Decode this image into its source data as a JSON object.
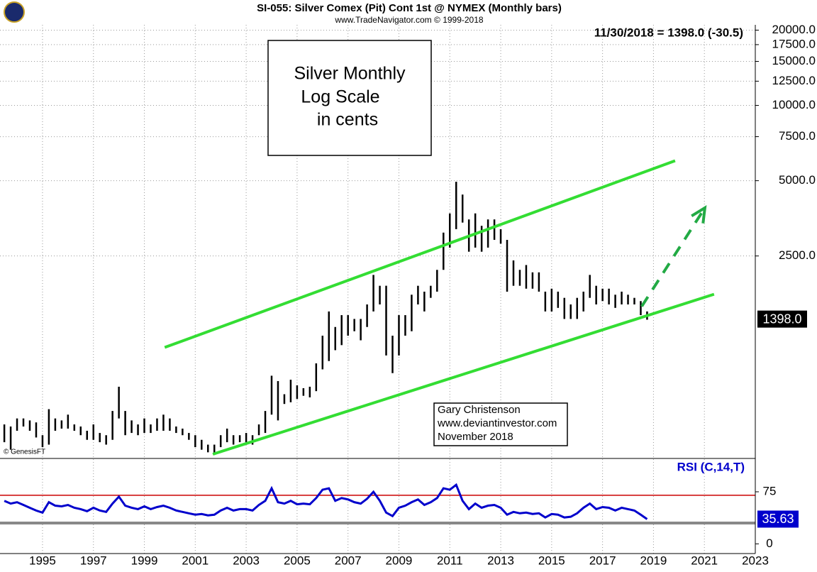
{
  "chart_data": {
    "type": "ohlc",
    "title": "SI-055:  Silver Comex (Pit) Cont 1st @ NYMEX  (Monthly bars)",
    "subtitle": "www.TradeNavigator.com © 1999-2018",
    "last_quote": "11/30/2018 = 1398.0 (-30.5)",
    "copyright": "© GenesisFT",
    "annotations": [
      "Silver Monthly",
      "Log Scale",
      "in cents"
    ],
    "credit": [
      "Gary Christenson",
      "www.deviantinvestor.com",
      "November 2018"
    ],
    "log_scale": true,
    "grid": true,
    "color": "#000000",
    "x": [
      1993.5,
      1993.75,
      1994,
      1994.25,
      1994.5,
      1994.75,
      1995,
      1995.25,
      1995.5,
      1995.75,
      1996,
      1996.25,
      1996.5,
      1996.75,
      1997,
      1997.25,
      1997.5,
      1997.75,
      1998,
      1998.25,
      1998.5,
      1998.75,
      1999,
      1999.25,
      1999.5,
      1999.75,
      2000,
      2000.25,
      2000.5,
      2000.75,
      2001,
      2001.25,
      2001.5,
      2001.75,
      2002,
      2002.25,
      2002.5,
      2002.75,
      2003,
      2003.25,
      2003.5,
      2003.75,
      2004,
      2004.25,
      2004.5,
      2004.75,
      2005,
      2005.25,
      2005.5,
      2005.75,
      2006,
      2006.25,
      2006.5,
      2006.75,
      2007,
      2007.25,
      2007.5,
      2007.75,
      2008,
      2008.25,
      2008.5,
      2008.75,
      2009,
      2009.25,
      2009.5,
      2009.75,
      2010,
      2010.25,
      2010.5,
      2010.75,
      2011,
      2011.25,
      2011.5,
      2011.75,
      2012,
      2012.25,
      2012.5,
      2012.75,
      2013,
      2013.25,
      2013.5,
      2013.75,
      2014,
      2014.25,
      2014.5,
      2014.75,
      2015,
      2015.25,
      2015.5,
      2015.75,
      2016,
      2016.25,
      2016.5,
      2016.75,
      2017,
      2017.25,
      2017.5,
      2017.75,
      2018,
      2018.25,
      2018.5,
      2018.75
    ],
    "high": [
      530,
      520,
      560,
      560,
      550,
      540,
      480,
      610,
      560,
      550,
      580,
      530,
      520,
      500,
      530,
      490,
      480,
      600,
      750,
      600,
      550,
      530,
      560,
      530,
      560,
      580,
      560,
      520,
      510,
      490,
      480,
      460,
      440,
      440,
      480,
      510,
      480,
      480,
      490,
      480,
      530,
      600,
      830,
      790,
      700,
      800,
      760,
      740,
      750,
      930,
      1200,
      1500,
      1300,
      1450,
      1450,
      1400,
      1400,
      1600,
      2100,
      1900,
      1900,
      1200,
      1450,
      1450,
      1750,
      1900,
      1800,
      1900,
      2200,
      3100,
      3700,
      4950,
      4400,
      3500,
      3700,
      3300,
      3500,
      3500,
      3200,
      2900,
      2400,
      2200,
      2300,
      2150,
      2150,
      1800,
      1850,
      1800,
      1700,
      1600,
      1700,
      1800,
      2100,
      1900,
      1850,
      1850,
      1750,
      1800,
      1750,
      1700,
      1650,
      1500
    ],
    "low": [
      450,
      420,
      500,
      520,
      500,
      470,
      430,
      440,
      500,
      510,
      510,
      500,
      480,
      460,
      460,
      450,
      440,
      460,
      560,
      480,
      490,
      480,
      490,
      490,
      500,
      500,
      500,
      490,
      480,
      460,
      430,
      420,
      410,
      400,
      430,
      450,
      440,
      450,
      450,
      440,
      480,
      490,
      580,
      550,
      640,
      650,
      670,
      690,
      680,
      720,
      880,
      950,
      1050,
      1100,
      1200,
      1250,
      1150,
      1300,
      1500,
      1600,
      1000,
      850,
      1000,
      1200,
      1250,
      1600,
      1500,
      1700,
      1800,
      2200,
      2700,
      3200,
      3400,
      2600,
      2700,
      2600,
      2700,
      2900,
      2800,
      1800,
      1900,
      1900,
      1850,
      1850,
      1800,
      1500,
      1500,
      1550,
      1400,
      1400,
      1400,
      1500,
      1700,
      1600,
      1650,
      1600,
      1550,
      1600,
      1600,
      1600,
      1450,
      1390
    ],
    "last_price": {
      "value": 1398,
      "label": "1398.0"
    },
    "xlim": [
      1993.33,
      2023.0
    ],
    "xticks": [
      1995,
      1997,
      1999,
      2001,
      2003,
      2005,
      2007,
      2009,
      2011,
      2013,
      2015,
      2017,
      2019,
      2021,
      2023
    ],
    "ylim": [
      390,
      21000
    ],
    "yticks": [
      {
        "value": 20000,
        "label": "20000.0"
      },
      {
        "value": 17500,
        "label": "17500.0"
      },
      {
        "value": 15000,
        "label": "15000.0"
      },
      {
        "value": 12500,
        "label": "12500.0"
      },
      {
        "value": 10000,
        "label": "10000.0"
      },
      {
        "value": 7500,
        "label": "7500.0"
      },
      {
        "value": 5000,
        "label": "5000.0"
      },
      {
        "value": 2500,
        "label": "2500.0"
      }
    ],
    "trend_lines": [
      {
        "color": "#33dd33",
        "x": [
          1999.8,
          2019.85
        ],
        "values": [
          1077,
          6010
        ]
      },
      {
        "color": "#33dd33",
        "x": [
          2001.69,
          2021.38
        ],
        "values": [
          403,
          1757
        ]
      },
      {
        "color": "#22aa44",
        "dashed": true,
        "x": [
          2018.54,
          2020.9
        ],
        "values": [
          1572,
          3727
        ]
      }
    ],
    "rsi": {
      "title": "RSI (C,14,T)",
      "color": "#0000cc",
      "values": [
        62,
        58,
        60,
        56,
        52,
        48,
        45,
        60,
        55,
        54,
        56,
        52,
        50,
        47,
        52,
        48,
        46,
        58,
        68,
        55,
        52,
        50,
        54,
        50,
        53,
        55,
        52,
        48,
        46,
        44,
        42,
        43,
        41,
        42,
        48,
        52,
        48,
        50,
        50,
        48,
        56,
        62,
        80,
        60,
        58,
        62,
        57,
        58,
        57,
        66,
        78,
        80,
        62,
        66,
        64,
        60,
        58,
        65,
        75,
        62,
        45,
        40,
        52,
        55,
        60,
        64,
        56,
        60,
        66,
        80,
        78,
        85,
        62,
        50,
        58,
        52,
        55,
        56,
        52,
        42,
        46,
        44,
        45,
        43,
        44,
        38,
        43,
        42,
        38,
        39,
        44,
        52,
        58,
        50,
        53,
        52,
        48,
        52,
        50,
        48,
        42,
        35.63
      ],
      "levels": [
        {
          "value": 70,
          "color": "#cc0000"
        },
        {
          "value": 30,
          "color": "#888888"
        }
      ],
      "ylim": [
        -14,
        121
      ],
      "yticks": [
        75,
        0
      ]
    }
  }
}
